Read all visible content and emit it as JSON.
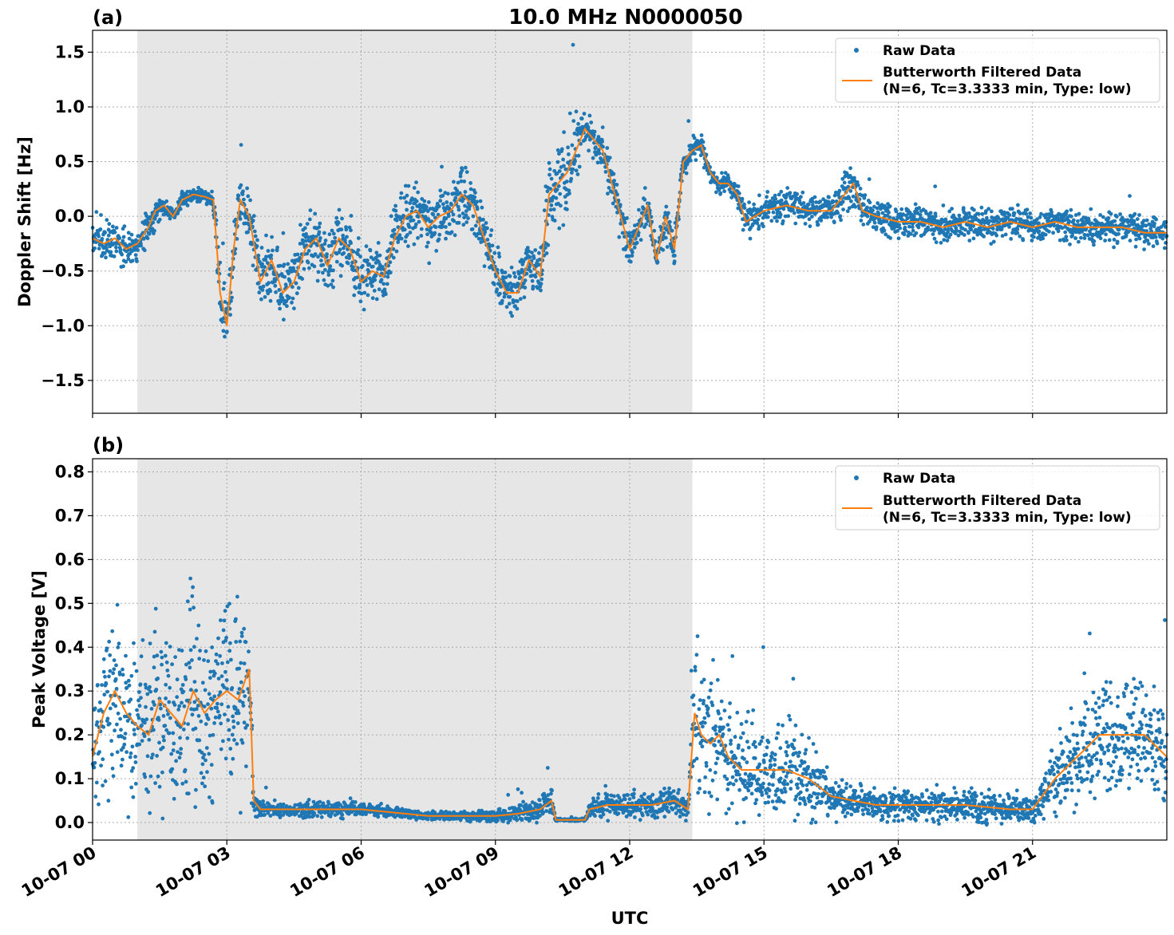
{
  "figure": {
    "title": "10.0 MHz N0000050",
    "xlabel": "UTC",
    "x_tick_labels": [
      "10-07 00",
      "10-07 03",
      "10-07 06",
      "10-07 09",
      "10-07 12",
      "10-07 15",
      "10-07 18",
      "10-07 21"
    ],
    "x_tick_hours": [
      0,
      3,
      6,
      9,
      12,
      15,
      18,
      21
    ],
    "xlim_hours": [
      0,
      24
    ],
    "shaded_region_hours": [
      1.0,
      13.4
    ],
    "colors": {
      "raw": "#1f77b4",
      "filtered": "#ff7f0e",
      "shade": "#e6e6e6"
    }
  },
  "chart_data": [
    {
      "panel_label": "(a)",
      "type": "scatter",
      "ylabel": "Doppler Shift [Hz]",
      "ylim": [
        -1.8,
        1.7
      ],
      "yticks": [
        -1.5,
        -1.0,
        -0.5,
        0.0,
        0.5,
        1.0,
        1.5
      ],
      "ytick_labels": [
        "−1.5",
        "−1.0",
        "−0.5",
        "0.0",
        "0.5",
        "1.0",
        "1.5"
      ],
      "grid": true,
      "legend_position": "top-right",
      "legend": {
        "raw_label": "Raw Data",
        "filtered_label_1": "Butterworth Filtered Data",
        "filtered_label_2": "(N=6, Tc=3.3333 min, Type: low)"
      },
      "series": [
        {
          "name": "Butterworth Filtered Data (N=6, Tc=3.3333 min, Type: low)",
          "x_hours": [
            0.0,
            0.25,
            0.5,
            0.75,
            1.0,
            1.25,
            1.4,
            1.6,
            1.8,
            2.0,
            2.25,
            2.5,
            2.7,
            2.85,
            3.0,
            3.15,
            3.3,
            3.5,
            3.75,
            4.0,
            4.25,
            4.5,
            4.75,
            5.0,
            5.25,
            5.5,
            5.75,
            6.0,
            6.25,
            6.5,
            6.75,
            7.0,
            7.25,
            7.5,
            7.75,
            8.0,
            8.25,
            8.5,
            8.75,
            9.0,
            9.25,
            9.5,
            9.75,
            10.0,
            10.2,
            10.4,
            10.6,
            10.8,
            11.0,
            11.2,
            11.4,
            11.6,
            11.8,
            12.0,
            12.2,
            12.4,
            12.6,
            12.8,
            13.0,
            13.2,
            13.4,
            13.6,
            13.8,
            14.0,
            14.2,
            14.4,
            14.6,
            14.8,
            15.0,
            15.5,
            16.0,
            16.5,
            16.8,
            17.0,
            17.2,
            17.5,
            18.0,
            18.5,
            19.0,
            19.5,
            20.0,
            20.5,
            21.0,
            21.5,
            22.0,
            22.5,
            23.0,
            23.5,
            24.0
          ],
          "y": [
            -0.2,
            -0.25,
            -0.2,
            -0.3,
            -0.25,
            -0.1,
            0.05,
            0.1,
            0.0,
            0.15,
            0.2,
            0.18,
            0.15,
            -0.7,
            -1.0,
            -0.3,
            0.15,
            0.0,
            -0.6,
            -0.4,
            -0.7,
            -0.6,
            -0.3,
            -0.2,
            -0.45,
            -0.2,
            -0.3,
            -0.6,
            -0.5,
            -0.55,
            -0.2,
            0.0,
            0.05,
            -0.1,
            0.0,
            0.05,
            0.2,
            0.1,
            -0.2,
            -0.5,
            -0.7,
            -0.7,
            -0.4,
            -0.55,
            0.2,
            0.3,
            0.4,
            0.6,
            0.8,
            0.7,
            0.6,
            0.3,
            0.0,
            -0.3,
            -0.1,
            0.1,
            -0.4,
            0.0,
            -0.3,
            0.5,
            0.6,
            0.65,
            0.4,
            0.3,
            0.3,
            0.2,
            -0.05,
            0.0,
            0.05,
            0.1,
            0.05,
            0.05,
            0.2,
            0.3,
            0.05,
            0.0,
            -0.05,
            -0.05,
            -0.1,
            -0.05,
            -0.1,
            -0.05,
            -0.1,
            -0.05,
            -0.1,
            -0.1,
            -0.1,
            -0.15,
            -0.15
          ]
        },
        {
          "name": "Raw Data",
          "x_hours": [
            0.0,
            0.25,
            0.5,
            0.75,
            1.0,
            1.25,
            1.4,
            1.6,
            1.8,
            2.0,
            2.25,
            2.5,
            2.7,
            2.85,
            3.0,
            3.15,
            3.3,
            3.5,
            3.75,
            4.0,
            4.25,
            4.5,
            4.75,
            5.0,
            5.25,
            5.5,
            5.75,
            6.0,
            6.25,
            6.5,
            6.75,
            7.0,
            7.25,
            7.5,
            7.75,
            8.0,
            8.25,
            8.5,
            8.75,
            9.0,
            9.25,
            9.5,
            9.75,
            10.0,
            10.2,
            10.4,
            10.6,
            10.8,
            11.0,
            11.2,
            11.4,
            11.6,
            11.8,
            12.0,
            12.2,
            12.4,
            12.6,
            12.8,
            13.0,
            13.2,
            13.4,
            13.6,
            13.8,
            14.0,
            14.2,
            14.4,
            14.6,
            14.8,
            15.0,
            15.5,
            16.0,
            16.5,
            16.8,
            17.0,
            17.2,
            17.5,
            18.0,
            18.5,
            19.0,
            19.5,
            20.0,
            20.5,
            21.0,
            21.5,
            22.0,
            22.5,
            23.0,
            23.5,
            24.0
          ],
          "y": [
            -0.2,
            -0.25,
            -0.2,
            -0.3,
            -0.25,
            -0.1,
            0.05,
            0.1,
            0.0,
            0.15,
            0.2,
            0.18,
            0.15,
            -0.7,
            -1.0,
            -0.3,
            0.15,
            0.0,
            -0.6,
            -0.4,
            -0.7,
            -0.6,
            -0.3,
            -0.2,
            -0.45,
            -0.2,
            -0.3,
            -0.6,
            -0.5,
            -0.55,
            -0.2,
            0.0,
            0.05,
            -0.1,
            0.0,
            0.05,
            0.2,
            0.1,
            -0.2,
            -0.5,
            -0.7,
            -0.7,
            -0.4,
            -0.55,
            0.2,
            0.3,
            0.4,
            0.6,
            0.8,
            0.7,
            0.6,
            0.3,
            0.0,
            -0.3,
            -0.1,
            0.1,
            -0.4,
            0.0,
            -0.3,
            0.5,
            0.6,
            0.65,
            0.4,
            0.3,
            0.3,
            0.2,
            -0.05,
            0.0,
            0.05,
            0.1,
            0.05,
            0.05,
            0.2,
            0.3,
            0.05,
            0.0,
            -0.05,
            -0.05,
            -0.1,
            -0.05,
            -0.1,
            -0.05,
            -0.1,
            -0.05,
            -0.1,
            -0.1,
            -0.1,
            -0.15,
            -0.15
          ],
          "spread": [
            0.15,
            0.35,
            0.3,
            0.2,
            0.2,
            0.2,
            0.2,
            0.1,
            0.1,
            0.1,
            0.1,
            0.1,
            0.15,
            0.5,
            0.5,
            0.4,
            0.3,
            0.35,
            0.5,
            0.5,
            0.5,
            0.45,
            0.45,
            0.45,
            0.45,
            0.45,
            0.4,
            0.4,
            0.35,
            0.35,
            0.35,
            0.35,
            0.35,
            0.35,
            0.35,
            0.35,
            0.4,
            0.35,
            0.35,
            0.35,
            0.3,
            0.3,
            0.3,
            0.35,
            0.6,
            0.55,
            0.55,
            0.5,
            0.3,
            0.25,
            0.3,
            0.3,
            0.3,
            0.25,
            0.25,
            0.25,
            0.25,
            0.25,
            0.25,
            0.2,
            0.15,
            0.15,
            0.15,
            0.15,
            0.15,
            0.15,
            0.2,
            0.2,
            0.2,
            0.2,
            0.2,
            0.2,
            0.3,
            0.35,
            0.2,
            0.2,
            0.2,
            0.2,
            0.2,
            0.2,
            0.2,
            0.2,
            0.2,
            0.2,
            0.2,
            0.2,
            0.2,
            0.2,
            0.2
          ]
        }
      ]
    },
    {
      "panel_label": "(b)",
      "type": "scatter",
      "ylabel": "Peak Voltage [V]",
      "ylim": [
        -0.04,
        0.83
      ],
      "yticks": [
        0.0,
        0.1,
        0.2,
        0.3,
        0.4,
        0.5,
        0.6,
        0.7,
        0.8
      ],
      "ytick_labels": [
        "0.0",
        "0.1",
        "0.2",
        "0.3",
        "0.4",
        "0.5",
        "0.6",
        "0.7",
        "0.8"
      ],
      "grid": true,
      "legend_position": "top-right",
      "legend": {
        "raw_label": "Raw Data",
        "filtered_label_1": "Butterworth Filtered Data",
        "filtered_label_2": "(N=6, Tc=3.3333 min, Type: low)"
      },
      "series": [
        {
          "name": "Butterworth Filtered Data (N=6, Tc=3.3333 min, Type: low)",
          "x_hours": [
            0.0,
            0.25,
            0.5,
            0.75,
            1.0,
            1.25,
            1.5,
            1.75,
            2.0,
            2.25,
            2.5,
            2.75,
            3.0,
            3.25,
            3.5,
            3.6,
            3.75,
            4.0,
            4.5,
            5.0,
            5.5,
            6.0,
            6.5,
            7.0,
            7.5,
            8.0,
            8.5,
            9.0,
            9.5,
            10.0,
            10.25,
            10.35,
            10.5,
            10.75,
            11.0,
            11.1,
            11.5,
            12.0,
            12.5,
            13.0,
            13.3,
            13.45,
            13.6,
            13.8,
            14.0,
            14.2,
            14.5,
            15.0,
            15.5,
            16.0,
            16.5,
            17.0,
            17.5,
            18.0,
            18.5,
            19.0,
            19.5,
            20.0,
            20.5,
            21.0,
            21.5,
            22.0,
            22.5,
            23.0,
            23.5,
            24.0
          ],
          "y": [
            0.15,
            0.25,
            0.3,
            0.25,
            0.22,
            0.2,
            0.28,
            0.25,
            0.22,
            0.3,
            0.25,
            0.28,
            0.3,
            0.28,
            0.35,
            0.05,
            0.03,
            0.03,
            0.03,
            0.03,
            0.03,
            0.03,
            0.025,
            0.02,
            0.015,
            0.015,
            0.015,
            0.015,
            0.02,
            0.03,
            0.05,
            0.006,
            0.006,
            0.006,
            0.006,
            0.03,
            0.04,
            0.04,
            0.04,
            0.05,
            0.03,
            0.25,
            0.2,
            0.18,
            0.2,
            0.15,
            0.12,
            0.12,
            0.12,
            0.1,
            0.06,
            0.05,
            0.04,
            0.04,
            0.04,
            0.04,
            0.04,
            0.035,
            0.03,
            0.03,
            0.1,
            0.15,
            0.2,
            0.2,
            0.2,
            0.15
          ]
        },
        {
          "name": "Raw Data",
          "x_hours": [
            0.0,
            0.25,
            0.5,
            0.75,
            1.0,
            1.25,
            1.5,
            1.75,
            2.0,
            2.25,
            2.5,
            2.75,
            3.0,
            3.25,
            3.5,
            3.6,
            3.75,
            4.0,
            4.5,
            5.0,
            5.5,
            6.0,
            6.5,
            7.0,
            7.5,
            8.0,
            8.5,
            9.0,
            9.5,
            10.0,
            10.25,
            10.35,
            10.5,
            10.75,
            11.0,
            11.1,
            11.5,
            12.0,
            12.5,
            13.0,
            13.3,
            13.45,
            13.6,
            13.8,
            14.0,
            14.2,
            14.5,
            15.0,
            15.5,
            16.0,
            16.5,
            17.0,
            17.5,
            18.0,
            18.5,
            19.0,
            19.5,
            20.0,
            20.5,
            21.0,
            21.5,
            22.0,
            22.5,
            23.0,
            23.5,
            24.0
          ],
          "y": [
            0.15,
            0.25,
            0.3,
            0.25,
            0.22,
            0.2,
            0.28,
            0.25,
            0.22,
            0.3,
            0.25,
            0.28,
            0.3,
            0.28,
            0.35,
            0.05,
            0.03,
            0.03,
            0.03,
            0.03,
            0.03,
            0.03,
            0.025,
            0.02,
            0.015,
            0.015,
            0.015,
            0.015,
            0.02,
            0.03,
            0.05,
            0.006,
            0.006,
            0.006,
            0.006,
            0.03,
            0.04,
            0.04,
            0.04,
            0.05,
            0.03,
            0.25,
            0.2,
            0.18,
            0.2,
            0.15,
            0.12,
            0.12,
            0.12,
            0.1,
            0.06,
            0.05,
            0.04,
            0.04,
            0.04,
            0.04,
            0.04,
            0.035,
            0.03,
            0.03,
            0.1,
            0.15,
            0.2,
            0.2,
            0.2,
            0.15
          ],
          "spread": [
            0.15,
            0.25,
            0.3,
            0.25,
            0.25,
            0.25,
            0.35,
            0.3,
            0.3,
            0.35,
            0.3,
            0.3,
            0.35,
            0.35,
            0.35,
            0.05,
            0.025,
            0.025,
            0.025,
            0.025,
            0.03,
            0.025,
            0.02,
            0.015,
            0.015,
            0.015,
            0.015,
            0.02,
            0.03,
            0.04,
            0.05,
            0.005,
            0.005,
            0.005,
            0.005,
            0.03,
            0.04,
            0.04,
            0.04,
            0.05,
            0.04,
            0.25,
            0.2,
            0.2,
            0.2,
            0.2,
            0.18,
            0.15,
            0.15,
            0.12,
            0.08,
            0.06,
            0.05,
            0.05,
            0.05,
            0.05,
            0.05,
            0.05,
            0.04,
            0.05,
            0.12,
            0.15,
            0.18,
            0.18,
            0.18,
            0.15
          ]
        }
      ]
    }
  ]
}
